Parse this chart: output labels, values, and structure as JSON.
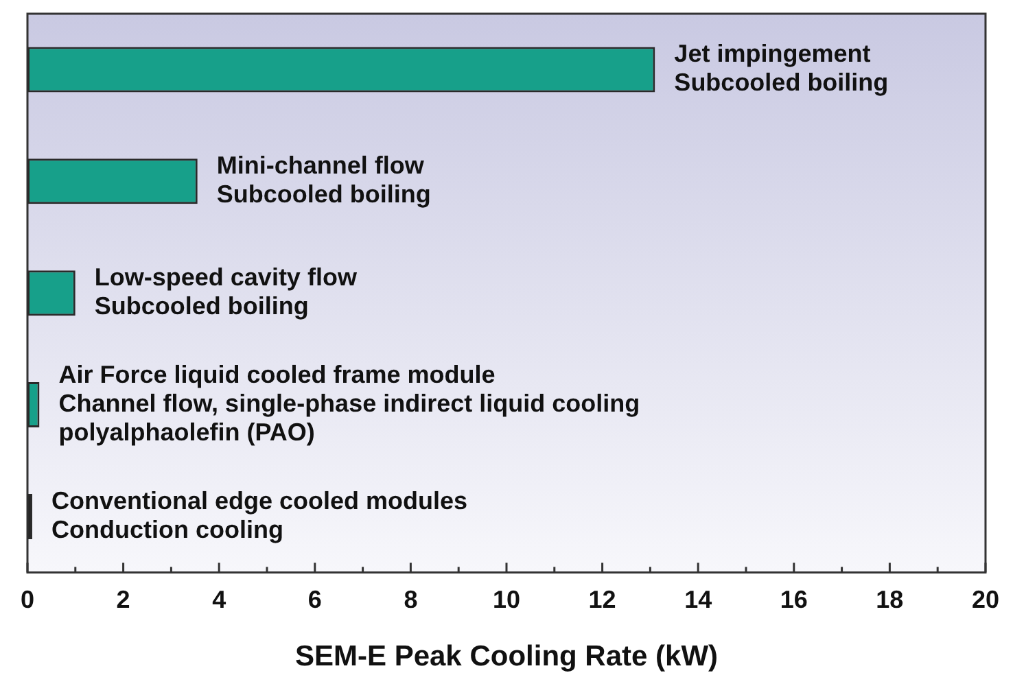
{
  "chart_data": {
    "type": "bar",
    "orientation": "horizontal",
    "xlabel": "SEM-E Peak Cooling Rate (kW)",
    "categories": [
      "Jet impingement\nSubcooled boiling",
      "Mini-channel flow\nSubcooled boiling",
      "Low-speed cavity flow\nSubcooled boiling",
      "Air Force liquid cooled frame module\nChannel flow, single-phase indirect liquid cooling\npolyalphaolefin (PAO)",
      "Conventional edge cooled modules\nConduction cooling"
    ],
    "values": [
      13.1,
      3.55,
      1.0,
      0.25,
      0.1
    ],
    "colors": [
      "#17a08a",
      "#17a08a",
      "#17a08a",
      "#17a08a",
      "#1a1a1a"
    ],
    "xlim": [
      0,
      20
    ],
    "xticks": [
      0,
      {
        "value": 1,
        "label": null
      },
      2,
      {
        "value": 3,
        "label": null
      },
      4,
      {
        "value": 5,
        "label": null
      },
      6,
      {
        "value": 7,
        "label": null
      },
      8,
      {
        "value": 9,
        "label": null
      },
      10,
      {
        "value": 11,
        "label": null
      },
      12,
      {
        "value": 13,
        "label": null
      },
      14,
      {
        "value": 15,
        "label": null
      },
      16,
      {
        "value": 17,
        "label": null
      },
      18,
      {
        "value": 19,
        "label": null
      },
      20
    ],
    "tick_labels": "x",
    "legend": false
  }
}
